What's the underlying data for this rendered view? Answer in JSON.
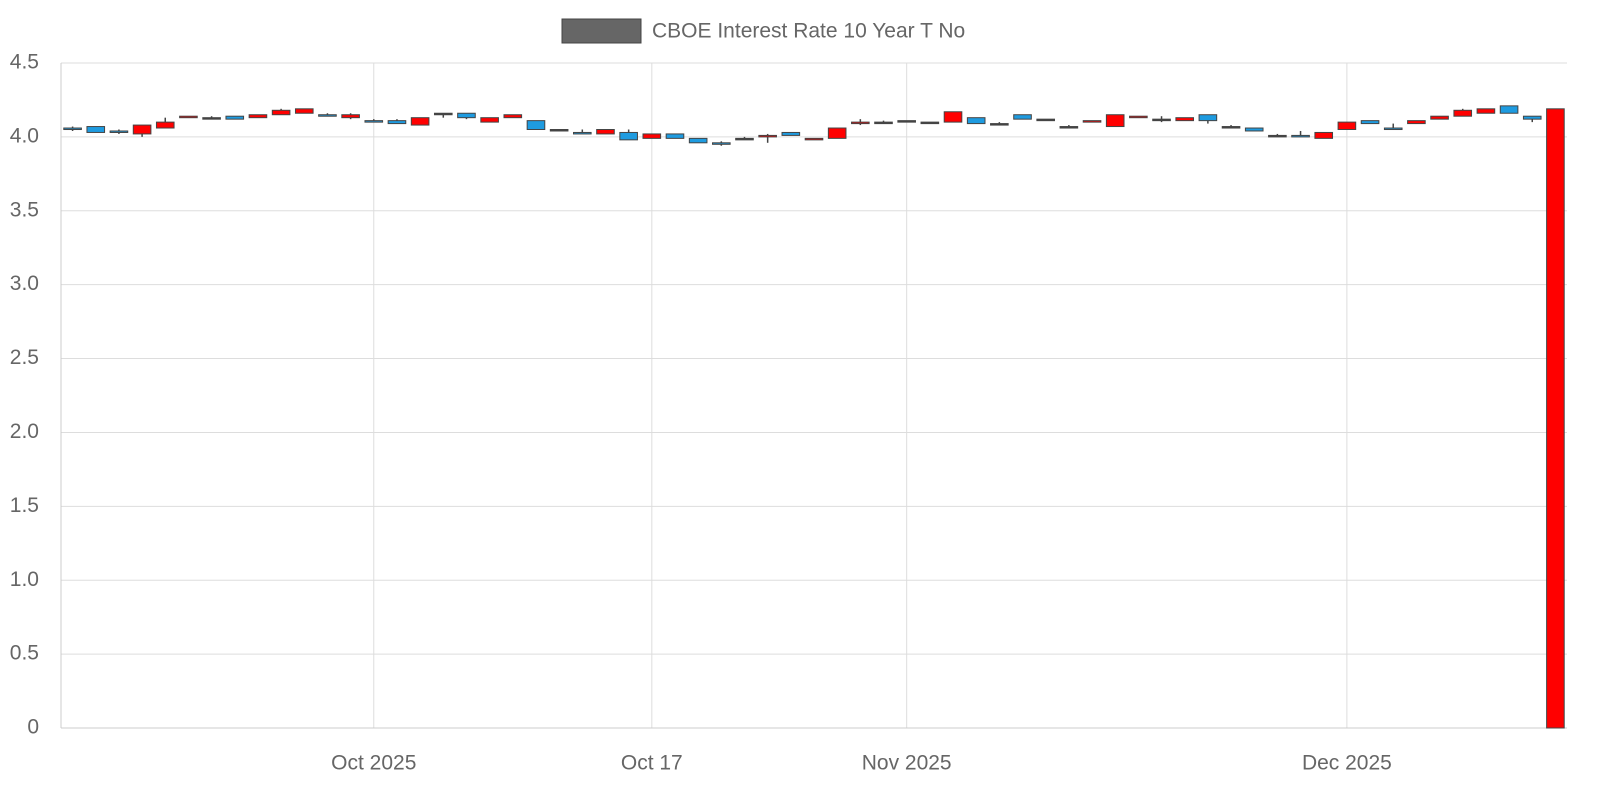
{
  "chart_data": {
    "type": "candlestick",
    "categories": [
      null,
      null,
      null,
      null,
      null,
      null,
      null,
      null,
      null,
      null,
      null,
      null,
      null,
      "Oct 2025",
      null,
      null,
      null,
      null,
      null,
      null,
      null,
      null,
      null,
      null,
      null,
      "Oct 17",
      null,
      null,
      null,
      null,
      null,
      null,
      null,
      null,
      null,
      null,
      "Nov 2025",
      null,
      null,
      null,
      null,
      null,
      null,
      null,
      null,
      null,
      null,
      null,
      null,
      null,
      null,
      null,
      null,
      null,
      null,
      "Dec 2025",
      null,
      null,
      null,
      null,
      null,
      null,
      null,
      null,
      null
    ],
    "series": [
      {
        "name": "CBOE Interest Rate 10 Year T No",
        "open": [
          4.06,
          4.07,
          4.04,
          4.02,
          4.06,
          4.13,
          4.13,
          4.14,
          4.13,
          4.15,
          4.16,
          4.15,
          4.13,
          4.11,
          4.11,
          4.08,
          4.16,
          4.16,
          4.1,
          4.13,
          4.11,
          4.05,
          4.03,
          4.02,
          4.03,
          3.99,
          4.02,
          3.99,
          3.96,
          3.99,
          4.0,
          4.03,
          3.98,
          3.99,
          4.09,
          4.1,
          4.11,
          4.1,
          4.1,
          4.13,
          4.09,
          4.15,
          4.12,
          4.07,
          4.1,
          4.07,
          4.13,
          4.12,
          4.11,
          4.15,
          4.07,
          4.06,
          4.01,
          4.01,
          3.99,
          4.05,
          4.11,
          4.06,
          4.09,
          4.12,
          4.14,
          4.16,
          4.21,
          4.14,
          0
        ],
        "high": [
          4.07,
          4.07,
          4.05,
          4.08,
          4.13,
          4.14,
          4.14,
          4.14,
          4.15,
          4.19,
          4.19,
          4.16,
          4.16,
          4.12,
          4.12,
          4.13,
          4.16,
          4.16,
          4.13,
          4.15,
          4.11,
          4.05,
          4.05,
          4.05,
          4.05,
          4.02,
          4.02,
          3.99,
          3.97,
          4.0,
          4.02,
          4.03,
          3.99,
          4.06,
          4.12,
          4.11,
          4.11,
          4.1,
          4.17,
          4.13,
          4.1,
          4.15,
          4.12,
          4.08,
          4.11,
          4.15,
          4.14,
          4.14,
          4.13,
          4.15,
          4.08,
          4.06,
          4.02,
          4.04,
          4.03,
          4.1,
          4.11,
          4.09,
          4.11,
          4.14,
          4.19,
          4.19,
          4.21,
          4.14,
          4.19
        ],
        "low": [
          4.04,
          4.03,
          4.02,
          4.0,
          4.06,
          4.13,
          4.13,
          4.12,
          4.13,
          4.15,
          4.16,
          4.14,
          4.12,
          4.1,
          4.09,
          4.08,
          4.13,
          4.12,
          4.1,
          4.13,
          4.05,
          4.05,
          4.02,
          4.02,
          3.98,
          3.99,
          3.99,
          3.96,
          3.94,
          3.98,
          3.96,
          4.01,
          3.98,
          3.99,
          4.08,
          4.09,
          4.11,
          4.1,
          4.1,
          4.09,
          4.08,
          4.12,
          4.12,
          4.07,
          4.1,
          4.07,
          4.13,
          4.1,
          4.11,
          4.09,
          4.07,
          4.04,
          4.0,
          4.0,
          3.99,
          4.05,
          4.09,
          4.05,
          4.09,
          4.12,
          4.14,
          4.16,
          4.16,
          4.1,
          0
        ],
        "close": [
          4.05,
          4.03,
          4.03,
          4.08,
          4.1,
          4.14,
          4.13,
          4.12,
          4.15,
          4.18,
          4.19,
          4.14,
          4.15,
          4.1,
          4.09,
          4.13,
          4.16,
          4.13,
          4.13,
          4.15,
          4.05,
          4.05,
          4.02,
          4.05,
          3.98,
          4.02,
          3.99,
          3.96,
          3.95,
          3.99,
          4.01,
          4.01,
          3.99,
          4.06,
          4.1,
          4.1,
          4.11,
          4.1,
          4.17,
          4.09,
          4.09,
          4.12,
          4.12,
          4.07,
          4.11,
          4.15,
          4.14,
          4.12,
          4.13,
          4.11,
          4.07,
          4.04,
          4.01,
          4.0,
          4.03,
          4.1,
          4.09,
          4.05,
          4.11,
          4.14,
          4.18,
          4.19,
          4.16,
          4.12,
          4.19
        ]
      }
    ],
    "increasing_color": "#ff0000",
    "decreasing_color": "#1e9be0",
    "outline_color": "#444444",
    "legend_color": "#666666",
    "ylim": [
      0,
      4.5
    ],
    "yticks": [
      0,
      0.5,
      {
        "value": 1,
        "label": "1.0"
      },
      1.5,
      {
        "value": 2,
        "label": "2.0"
      },
      2.5,
      {
        "value": 3,
        "label": "3.0"
      },
      3.5,
      {
        "value": 4,
        "label": "4.0"
      },
      4.5
    ],
    "grid": true,
    "legend": "top"
  }
}
